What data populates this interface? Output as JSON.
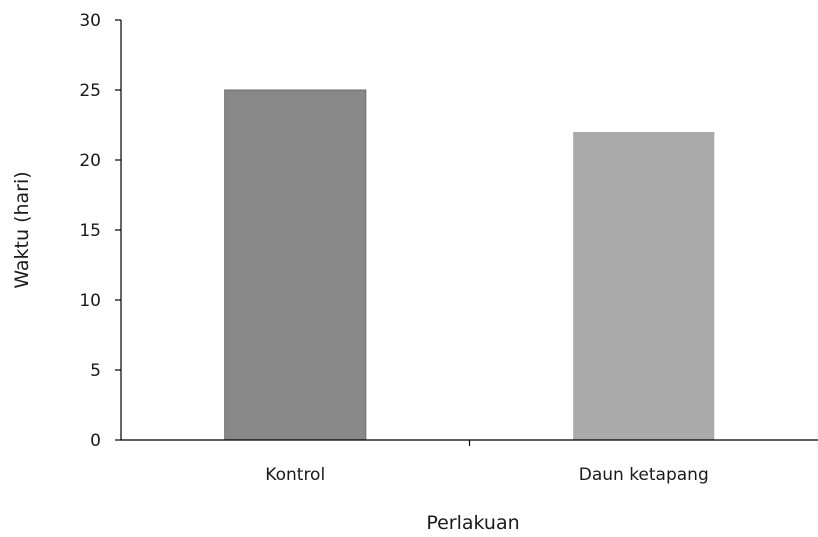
{
  "chart_data": {
    "type": "bar",
    "title": "",
    "xlabel": "Perlakuan",
    "ylabel": "Waktu (hari)",
    "categories": [
      "Kontrol",
      "Daun ketapang"
    ],
    "values": [
      25,
      22
    ],
    "bar_colors": [
      "#888888",
      "#aaaaaa"
    ],
    "bar_border_color": "#6e6e6e",
    "axis_color": "#000000",
    "ylim": [
      0,
      30
    ],
    "yticks": [
      "0",
      "5",
      "10",
      "15",
      "20",
      "25",
      "30"
    ],
    "grid": false,
    "legend": "none"
  }
}
